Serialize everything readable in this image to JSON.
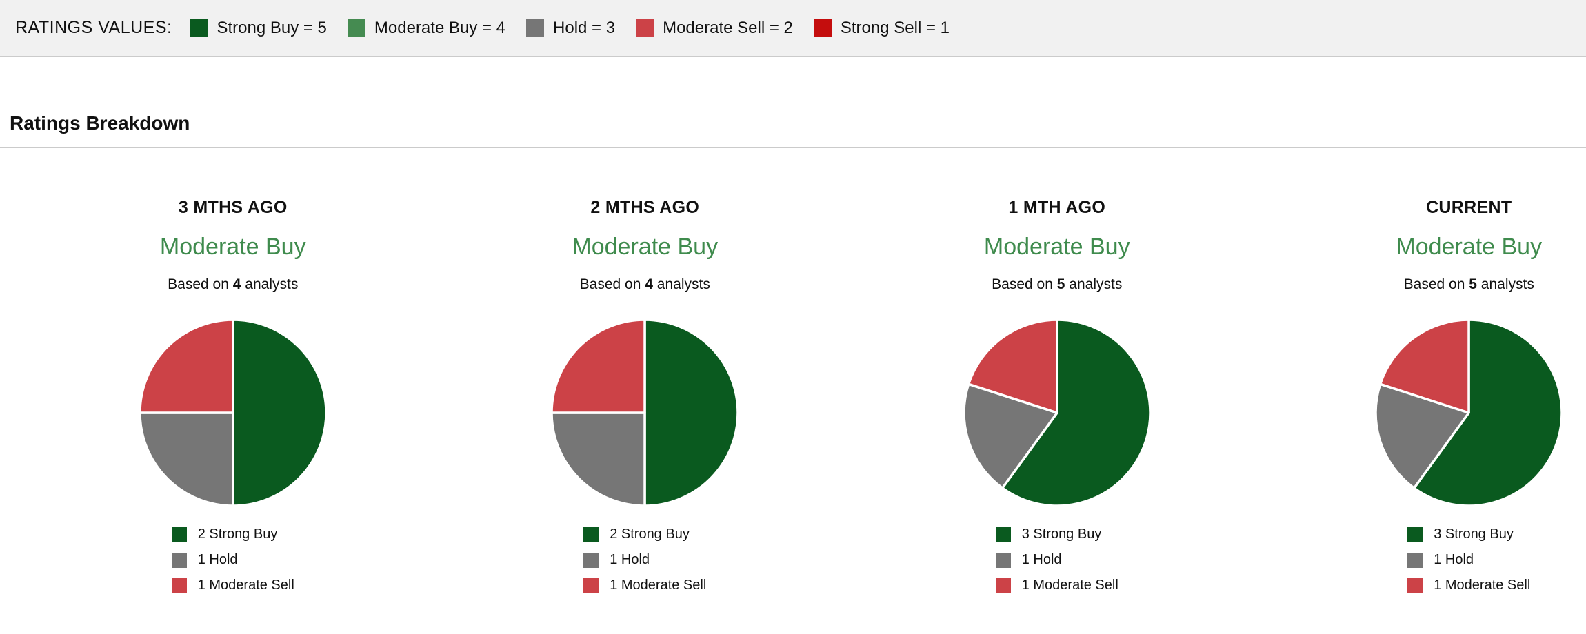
{
  "ratings_values_bar": {
    "label": "RATINGS VALUES:",
    "items": [
      {
        "name": "Strong Buy = 5",
        "color": "#0a5a1f"
      },
      {
        "name": "Moderate Buy = 4",
        "color": "#458b51"
      },
      {
        "name": "Hold = 3",
        "color": "#767676"
      },
      {
        "name": "Moderate Sell = 2",
        "color": "#cc4247"
      },
      {
        "name": "Strong Sell = 1",
        "color": "#c40d0d"
      }
    ]
  },
  "section": {
    "title": "Ratings Breakdown"
  },
  "consensus_color": "#3f8b4d",
  "chart_data": [
    {
      "type": "pie",
      "period": "3 MTHS AGO",
      "consensus": "Moderate Buy",
      "based_on_prefix": "Based on",
      "analyst_count": "4",
      "based_on_suffix": "analysts",
      "legend_position": "bottom",
      "slices": [
        {
          "label": "2 Strong Buy",
          "value": 2,
          "color": "#0a5a1f"
        },
        {
          "label": "1 Hold",
          "value": 1,
          "color": "#767676"
        },
        {
          "label": "1 Moderate Sell",
          "value": 1,
          "color": "#cc4247"
        }
      ]
    },
    {
      "type": "pie",
      "period": "2 MTHS AGO",
      "consensus": "Moderate Buy",
      "based_on_prefix": "Based on",
      "analyst_count": "4",
      "based_on_suffix": "analysts",
      "legend_position": "bottom",
      "slices": [
        {
          "label": "2 Strong Buy",
          "value": 2,
          "color": "#0a5a1f"
        },
        {
          "label": "1 Hold",
          "value": 1,
          "color": "#767676"
        },
        {
          "label": "1 Moderate Sell",
          "value": 1,
          "color": "#cc4247"
        }
      ]
    },
    {
      "type": "pie",
      "period": "1 MTH AGO",
      "consensus": "Moderate Buy",
      "based_on_prefix": "Based on",
      "analyst_count": "5",
      "based_on_suffix": "analysts",
      "legend_position": "bottom",
      "slices": [
        {
          "label": "3 Strong Buy",
          "value": 3,
          "color": "#0a5a1f"
        },
        {
          "label": "1 Hold",
          "value": 1,
          "color": "#767676"
        },
        {
          "label": "1 Moderate Sell",
          "value": 1,
          "color": "#cc4247"
        }
      ]
    },
    {
      "type": "pie",
      "period": "CURRENT",
      "consensus": "Moderate Buy",
      "based_on_prefix": "Based on",
      "analyst_count": "5",
      "based_on_suffix": "analysts",
      "legend_position": "bottom",
      "slices": [
        {
          "label": "3 Strong Buy",
          "value": 3,
          "color": "#0a5a1f"
        },
        {
          "label": "1 Hold",
          "value": 1,
          "color": "#767676"
        },
        {
          "label": "1 Moderate Sell",
          "value": 1,
          "color": "#cc4247"
        }
      ]
    }
  ]
}
